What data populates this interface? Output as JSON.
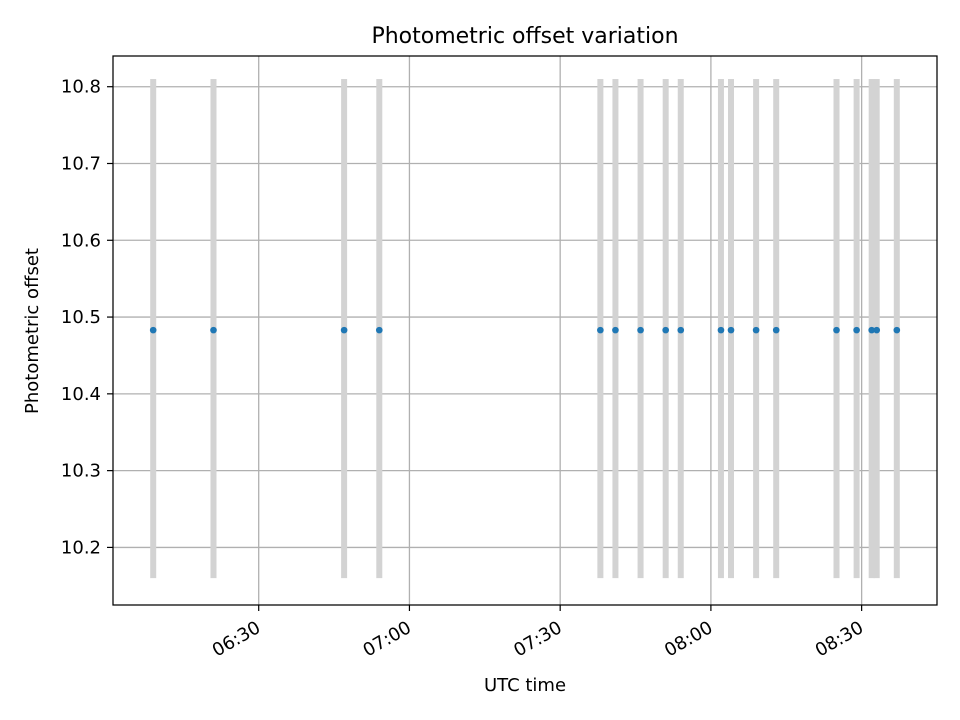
{
  "chart_data": {
    "type": "scatter",
    "title": "Photometric offset variation",
    "xlabel": "UTC time",
    "ylabel": "Photometric offset",
    "x_axis_type": "time",
    "xlim": [
      "06:01",
      "08:45"
    ],
    "ylim": [
      10.125,
      10.84
    ],
    "xticks": [
      "06:30",
      "07:00",
      "07:30",
      "08:00",
      "08:30"
    ],
    "yticks": [
      "10.2",
      "10.3",
      "10.4",
      "10.5",
      "10.6",
      "10.7",
      "10.8"
    ],
    "grid": true,
    "colors": {
      "points": "#1f77b4",
      "bars": "#d3d3d3",
      "grid": "#b0b0b0"
    },
    "range_bars": {
      "ymin": 10.16,
      "ymax": 10.81
    },
    "points": [
      {
        "x": "06:09",
        "y": 10.483
      },
      {
        "x": "06:21",
        "y": 10.483
      },
      {
        "x": "06:47",
        "y": 10.483
      },
      {
        "x": "06:54",
        "y": 10.483
      },
      {
        "x": "07:38",
        "y": 10.483
      },
      {
        "x": "07:41",
        "y": 10.483
      },
      {
        "x": "07:46",
        "y": 10.483
      },
      {
        "x": "07:51",
        "y": 10.483
      },
      {
        "x": "07:54",
        "y": 10.483
      },
      {
        "x": "08:02",
        "y": 10.483
      },
      {
        "x": "08:04",
        "y": 10.483
      },
      {
        "x": "08:09",
        "y": 10.483
      },
      {
        "x": "08:13",
        "y": 10.483
      },
      {
        "x": "08:25",
        "y": 10.483
      },
      {
        "x": "08:29",
        "y": 10.483
      },
      {
        "x": "08:32",
        "y": 10.483
      },
      {
        "x": "08:33",
        "y": 10.483
      },
      {
        "x": "08:37",
        "y": 10.483
      }
    ]
  }
}
